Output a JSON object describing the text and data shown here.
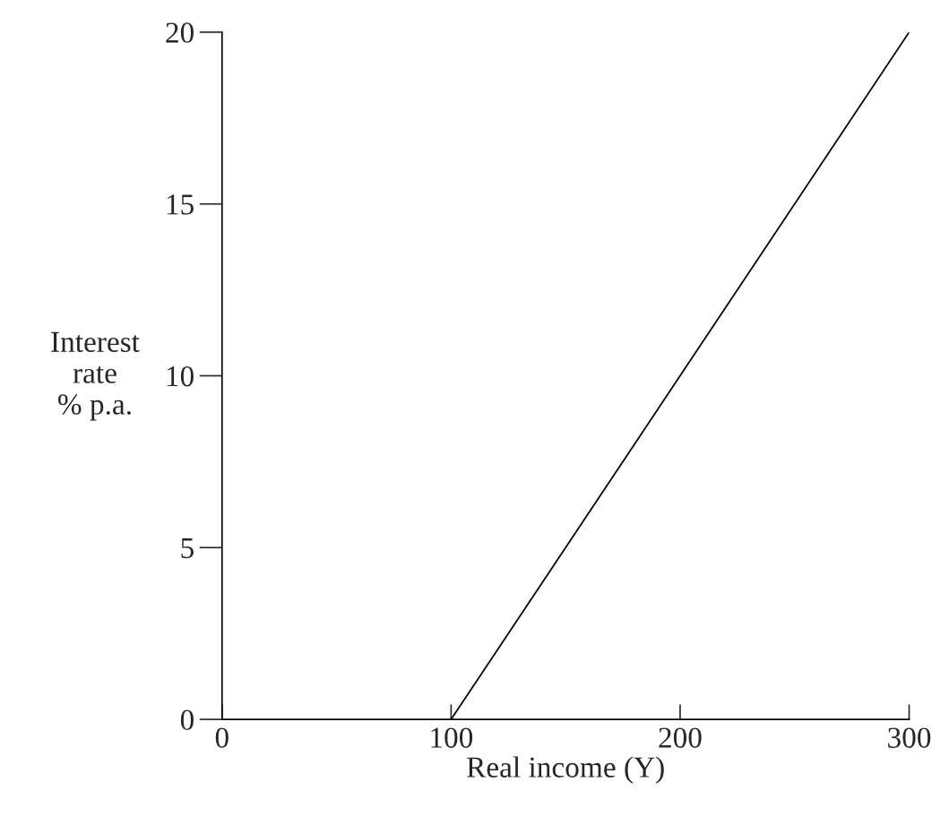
{
  "chart_data": {
    "type": "line",
    "xlabel": "Real income (Y)",
    "ylabel": "Interest\nrate\n% p.a.",
    "x": [
      100,
      300
    ],
    "series": [
      {
        "color": "#000000",
        "values": [
          0,
          20
        ]
      }
    ],
    "xlim": [
      0,
      300
    ],
    "xticks": [
      0,
      100,
      200,
      300
    ],
    "ylim": [
      0,
      20
    ],
    "yticks": [
      0,
      5,
      10,
      15,
      20
    ],
    "grid": false,
    "marker": "none",
    "line_style": "solid"
  }
}
